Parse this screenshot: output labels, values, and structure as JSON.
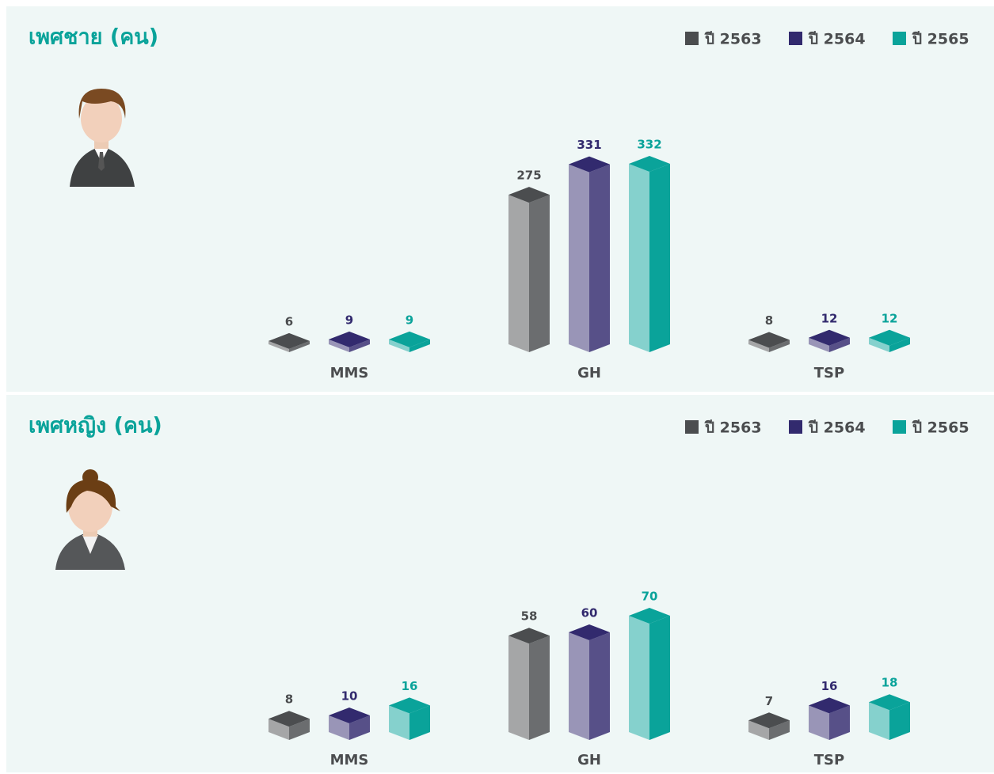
{
  "chart_data": [
    {
      "type": "bar3d",
      "title": "เพศชาย (คน)",
      "categories": [
        "MMS",
        "GH",
        "TSP"
      ],
      "series": [
        {
          "name": "ปี 2563",
          "color": "#4b4d4f",
          "values": [
            6,
            275,
            8
          ]
        },
        {
          "name": "ปี 2564",
          "color": "#322a6e",
          "values": [
            9,
            331,
            12
          ]
        },
        {
          "name": "ปี 2565",
          "color": "#0aa39a",
          "values": [
            9,
            332,
            12
          ]
        }
      ]
    },
    {
      "type": "bar3d",
      "title": "เพศหญิง (คน)",
      "categories": [
        "MMS",
        "GH",
        "TSP"
      ],
      "series": [
        {
          "name": "ปี 2563",
          "color": "#4b4d4f",
          "values": [
            8,
            58,
            7
          ]
        },
        {
          "name": "ปี 2564",
          "color": "#322a6e",
          "values": [
            10,
            60,
            16
          ]
        },
        {
          "name": "ปี 2565",
          "color": "#0aa39a",
          "values": [
            16,
            70,
            18
          ]
        }
      ]
    }
  ]
}
